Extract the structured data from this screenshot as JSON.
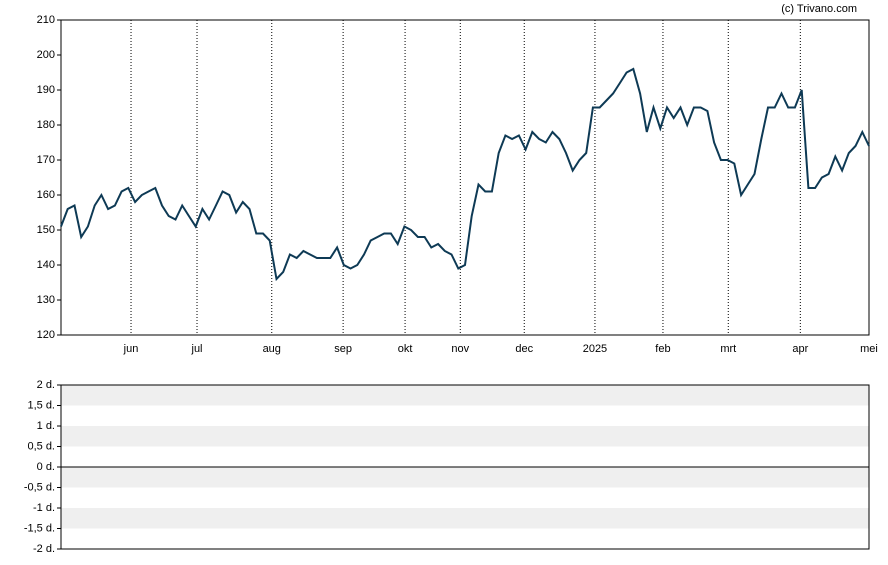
{
  "chart_data": [
    {
      "type": "line",
      "annotation": "(c) Trivano.com",
      "xlim": [
        0,
        120
      ],
      "xticks": [
        {
          "value": 10.4,
          "label": "jun"
        },
        {
          "value": 20.2,
          "label": "jul"
        },
        {
          "value": 31.3,
          "label": "aug"
        },
        {
          "value": 41.9,
          "label": "sep"
        },
        {
          "value": 51.1,
          "label": "okt"
        },
        {
          "value": 59.3,
          "label": "nov"
        },
        {
          "value": 68.8,
          "label": "dec"
        },
        {
          "value": 79.3,
          "label": "2025"
        },
        {
          "value": 89.4,
          "label": "feb"
        },
        {
          "value": 99.1,
          "label": "mrt"
        },
        {
          "value": 109.8,
          "label": "apr"
        },
        {
          "value": 120,
          "label": "mei"
        }
      ],
      "ylim": [
        120,
        210
      ],
      "yticks": [
        120,
        130,
        140,
        150,
        160,
        170,
        180,
        190,
        200,
        210
      ],
      "grid": true,
      "series": [
        {
          "color": "#0e3a55",
          "values": [
            151,
            156,
            157,
            148,
            151,
            157,
            160,
            156,
            157,
            161,
            162,
            158,
            160,
            161,
            162,
            157,
            154,
            153,
            157,
            154,
            151,
            156,
            153,
            157,
            161,
            160,
            155,
            158,
            156,
            149,
            149,
            147,
            136,
            138,
            143,
            142,
            144,
            143,
            142,
            142,
            142,
            145,
            140,
            139,
            140,
            143,
            147,
            148,
            149,
            149,
            146,
            151,
            150,
            148,
            148,
            145,
            146,
            144,
            143,
            139,
            140,
            154,
            163,
            161,
            161,
            172,
            177,
            176,
            177,
            173,
            178,
            176,
            175,
            178,
            176,
            172,
            167,
            170,
            172,
            185,
            185,
            187,
            189,
            192,
            195,
            196,
            189,
            178,
            185,
            179,
            185,
            182,
            185,
            180,
            185,
            185,
            184,
            175,
            170,
            170,
            169,
            160,
            163,
            166,
            176,
            185,
            185,
            189,
            185,
            185,
            190,
            162,
            162,
            165,
            166,
            171,
            167,
            172,
            174,
            178,
            174
          ]
        }
      ]
    },
    {
      "type": "line",
      "xlim": [
        0,
        120
      ],
      "ylim": [
        -2,
        2
      ],
      "grid": true,
      "yticks": [
        {
          "value": 2,
          "label": "2 d."
        },
        {
          "value": 1.5,
          "label": "1,5 d."
        },
        {
          "value": 1,
          "label": "1 d."
        },
        {
          "value": 0.5,
          "label": "0,5 d."
        },
        {
          "value": 0,
          "label": "0 d."
        },
        {
          "value": -0.5,
          "label": "-0,5 d."
        },
        {
          "value": -1,
          "label": "-1 d."
        },
        {
          "value": -1.5,
          "label": "-1,5 d."
        },
        {
          "value": -2,
          "label": "-2 d."
        }
      ],
      "series": []
    }
  ]
}
